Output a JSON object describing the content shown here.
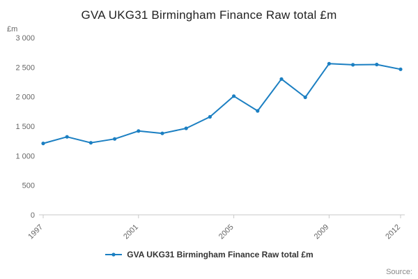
{
  "title": "GVA UKG31 Birmingham Finance Raw total £m",
  "y_unit_label": "£m",
  "source_label": "Source:",
  "legend": {
    "label": "GVA UKG31 Birmingham Finance Raw total £m"
  },
  "colors": {
    "line": "#1b7fc2",
    "axis": "#c9c9c9",
    "tick_text": "#666666",
    "title_text": "#222222",
    "legend_text": "#333333",
    "source_text": "#888888"
  },
  "chart_data": {
    "type": "line",
    "x": [
      1997,
      1998,
      1999,
      2000,
      2001,
      2002,
      2003,
      2004,
      2005,
      2006,
      2007,
      2008,
      2009,
      2010,
      2011,
      2012
    ],
    "series": [
      {
        "name": "GVA UKG31 Birmingham Finance Raw total £m",
        "values": [
          1210,
          1320,
          1220,
          1285,
          1420,
          1380,
          1465,
          1660,
          2010,
          1760,
          2300,
          1990,
          2560,
          2540,
          2545,
          2465
        ]
      }
    ],
    "title": "GVA UKG31 Birmingham Finance Raw total £m",
    "xlabel": "",
    "ylabel": "£m",
    "ylim": [
      0,
      3000
    ],
    "yticks": [
      0,
      500,
      1000,
      1500,
      2000,
      2500,
      3000
    ],
    "xticks": [
      1997,
      2001,
      2005,
      2009,
      2012
    ],
    "grid": false,
    "legend_position": "bottom"
  }
}
